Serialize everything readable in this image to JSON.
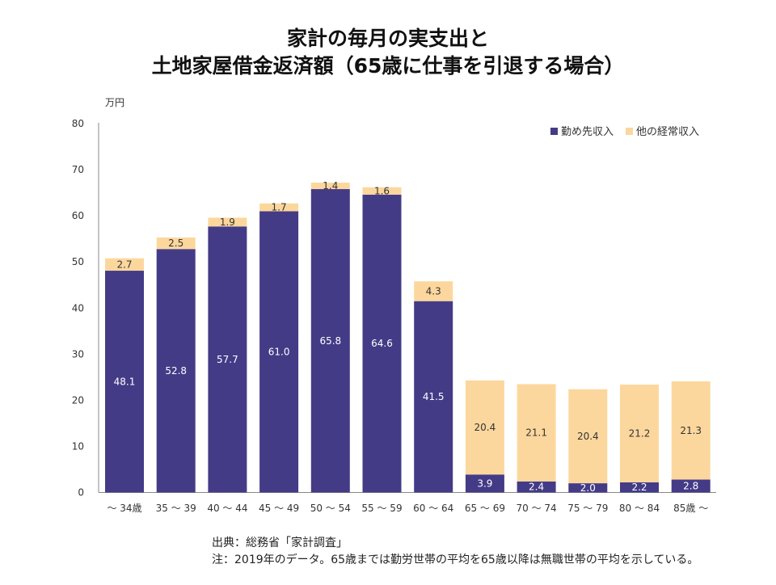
{
  "title": {
    "line1": "家計の毎月の実支出と",
    "line2": "土地家屋借金返済額（65歳に仕事を引退する場合）"
  },
  "colors": {
    "series1": "#443b87",
    "series2": "#fcd79d"
  },
  "chart_data": {
    "type": "bar",
    "stacked": true,
    "unit_label": "万円",
    "categories": [
      "～ 34歳",
      "35 ～ 39",
      "40 ～ 44",
      "45 ～ 49",
      "50 ～ 54",
      "55 ～ 59",
      "60 ～ 64",
      "65 ～ 69",
      "70 ～ 74",
      "75 ～ 79",
      "80 ～ 84",
      "85歳 ～"
    ],
    "series": [
      {
        "name": "勤め先収入",
        "values": [
          48.1,
          52.8,
          57.7,
          61.0,
          65.8,
          64.6,
          41.5,
          3.9,
          2.4,
          2.0,
          2.2,
          2.8
        ]
      },
      {
        "name": "他の経常収入",
        "values": [
          2.7,
          2.5,
          1.9,
          1.7,
          1.4,
          1.6,
          4.3,
          20.4,
          21.1,
          20.4,
          21.2,
          21.3
        ]
      }
    ],
    "labels1": [
      "48.1",
      "52.8",
      "57.7",
      "61.0",
      "65.8",
      "64.6",
      "41.5",
      "3.9",
      "2.4",
      "2.0",
      "2.2",
      "2.8"
    ],
    "labels2": [
      "2.7",
      "2.5",
      "1.9",
      "1.7",
      "1.4",
      "1.6",
      "4.3",
      "20.4",
      "21.1",
      "20.4",
      "21.2",
      "21.3"
    ],
    "ylim": [
      0,
      80
    ],
    "yticks": [
      0,
      10,
      20,
      30,
      40,
      50,
      60,
      70,
      80
    ],
    "legend_position": "top-right"
  },
  "notes": {
    "source": "出典：総務省「家計調査」",
    "note": "注：2019年のデータ。65歳までは勤労世帯の平均を65歳以降は無職世帯の平均を示している。"
  }
}
